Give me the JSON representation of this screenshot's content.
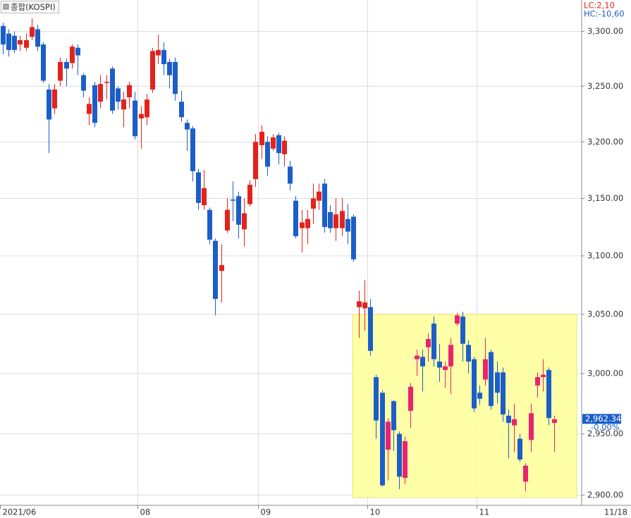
{
  "chart_data": {
    "type": "candlestick",
    "title": "종합(KOSPI)",
    "lc_label": "LC:2,10",
    "hc_label": "HC:-10,60",
    "last_date_label": "11/18",
    "last_price": {
      "value": 2962.34,
      "label": "2,962.34"
    },
    "change_label": "-0.00%",
    "categories": [
      "2021/06",
      null,
      null,
      null,
      null,
      null,
      null,
      null,
      null,
      null,
      null,
      null,
      null,
      null,
      null,
      null,
      null,
      null,
      null,
      null,
      null,
      null,
      null,
      null,
      "08",
      null,
      null,
      null,
      null,
      null,
      null,
      null,
      null,
      null,
      null,
      null,
      null,
      null,
      null,
      null,
      null,
      null,
      null,
      null,
      null,
      "09",
      null,
      null,
      null,
      null,
      null,
      null,
      null,
      null,
      null,
      null,
      null,
      null,
      null,
      null,
      null,
      null,
      null,
      null,
      "10",
      null,
      null,
      null,
      null,
      null,
      null,
      null,
      null,
      null,
      null,
      null,
      null,
      null,
      null,
      null,
      null,
      null,
      null,
      "11",
      null,
      null,
      null,
      null,
      null,
      null,
      null,
      null,
      null,
      null,
      null,
      null,
      null
    ],
    "open": [
      3305,
      3298,
      3296,
      3288,
      3285,
      3295,
      3302,
      3288,
      3247,
      3230,
      3255,
      3272,
      3271,
      3285,
      3260,
      3225,
      3251,
      3236,
      3253,
      3266,
      3248,
      3229,
      3240,
      3237,
      3221,
      3222,
      3247,
      3278,
      3283,
      3272,
      3272,
      3236,
      3217,
      3212,
      3173,
      3144,
      3140,
      3113,
      3087,
      3122,
      3149,
      3152,
      3123,
      3145,
      3167,
      3197,
      3200,
      3194,
      3206,
      3189,
      3178,
      3148,
      3124,
      3124,
      3141,
      3148,
      3163,
      3138,
      3124,
      3124,
      3132,
      3134,
      3056,
      3055,
      3056,
      2997,
      2984,
      2937,
      2977,
      2950,
      2914,
      2969,
      3012,
      3014,
      3022,
      3042,
      3010,
      3003,
      3006,
      3042,
      3048,
      3024,
      3012,
      2984,
      2995,
      3018,
      3001,
      3001,
      2965,
      2957,
      2946,
      2911,
      2945,
      2990,
      2997,
      3003,
      2959
    ],
    "high": [
      3308,
      3302,
      3300,
      3296,
      3298,
      3312,
      3306,
      3290,
      3252,
      3252,
      3276,
      3275,
      3288,
      3288,
      3262,
      3240,
      3254,
      3260,
      3260,
      3268,
      3250,
      3245,
      3254,
      3245,
      3232,
      3243,
      3285,
      3297,
      3290,
      3275,
      3276,
      3246,
      3220,
      3214,
      3176,
      3175,
      3142,
      3115,
      3110,
      3150,
      3165,
      3156,
      3150,
      3166,
      3207,
      3215,
      3205,
      3207,
      3208,
      3205,
      3183,
      3152,
      3140,
      3140,
      3163,
      3163,
      3167,
      3144,
      3150,
      3150,
      3145,
      3136,
      3070,
      3079,
      3063,
      2999,
      2986,
      2963,
      2978,
      2952,
      2948,
      2992,
      3020,
      3020,
      3034,
      3048,
      3025,
      3010,
      3030,
      3051,
      3052,
      3028,
      3014,
      2990,
      3030,
      3020,
      3010,
      3005,
      2970,
      2975,
      2950,
      2926,
      2975,
      3001,
      3012,
      3005,
      2965
    ],
    "low": [
      3279,
      3277,
      3280,
      3282,
      3282,
      3292,
      3282,
      3253,
      3190,
      3225,
      3250,
      3250,
      3266,
      3260,
      3240,
      3215,
      3213,
      3230,
      3238,
      3225,
      3229,
      3213,
      3230,
      3202,
      3194,
      3215,
      3244,
      3270,
      3260,
      3248,
      3237,
      3218,
      3192,
      3165,
      3140,
      3140,
      3110,
      3049,
      3060,
      3120,
      3130,
      3115,
      3108,
      3143,
      3160,
      3185,
      3170,
      3192,
      3180,
      3178,
      3157,
      3115,
      3103,
      3110,
      3128,
      3140,
      3120,
      3120,
      3113,
      3117,
      3110,
      3095,
      3030,
      3036,
      3015,
      2946,
      2907,
      2912,
      2936,
      2905,
      2909,
      2955,
      2998,
      2985,
      3010,
      3006,
      2993,
      2988,
      2983,
      3040,
      3010,
      3000,
      2968,
      2974,
      2990,
      2970,
      2975,
      2960,
      2930,
      2935,
      2927,
      2903,
      2935,
      2980,
      2985,
      2957,
      2935
    ],
    "close": [
      3288,
      3283,
      3283,
      3292,
      3292,
      3304,
      3286,
      3255,
      3220,
      3247,
      3272,
      3266,
      3286,
      3278,
      3246,
      3234,
      3217,
      3252,
      3254,
      3228,
      3236,
      3238,
      3251,
      3205,
      3225,
      3238,
      3282,
      3283,
      3270,
      3260,
      3243,
      3222,
      3211,
      3174,
      3146,
      3159,
      3114,
      3063,
      3092,
      3140,
      3148,
      3127,
      3137,
      3162,
      3200,
      3209,
      3178,
      3204,
      3190,
      3201,
      3163,
      3117,
      3129,
      3132,
      3150,
      3156,
      3125,
      3124,
      3136,
      3139,
      3121,
      3097,
      3061,
      3060,
      3019,
      2961,
      2908,
      2960,
      2953,
      2915,
      2944,
      2989,
      3015,
      3006,
      3029,
      3012,
      3005,
      3006,
      3024,
      3049,
      3025,
      3010,
      2971,
      2979,
      3012,
      2973,
      2984,
      2966,
      2959,
      2962,
      2929,
      2924,
      2967,
      2997,
      2999,
      2963,
      2962
    ],
    "colors": {
      "up": "#e3221c",
      "down": "#1c5ec9",
      "highlight_up": "#e8246e",
      "highlight": "#ffff99"
    },
    "ylim": [
      2893,
      3329
    ],
    "log_scale": true,
    "yticks": [
      {
        "value": 2900,
        "label": "2,900.00"
      },
      {
        "value": 2950,
        "label": "2,950.00"
      },
      {
        "value": 3000,
        "label": "3,000.00"
      },
      {
        "value": 3050,
        "label": "3,050.00"
      },
      {
        "value": 3100,
        "label": "3,100.00"
      },
      {
        "value": 3150,
        "label": "3,150.00"
      },
      {
        "value": 3200,
        "label": "3,200.00"
      },
      {
        "value": 3250,
        "label": "3,250.00"
      },
      {
        "value": 3300,
        "label": "3,300.00"
      }
    ],
    "grid": true
  }
}
